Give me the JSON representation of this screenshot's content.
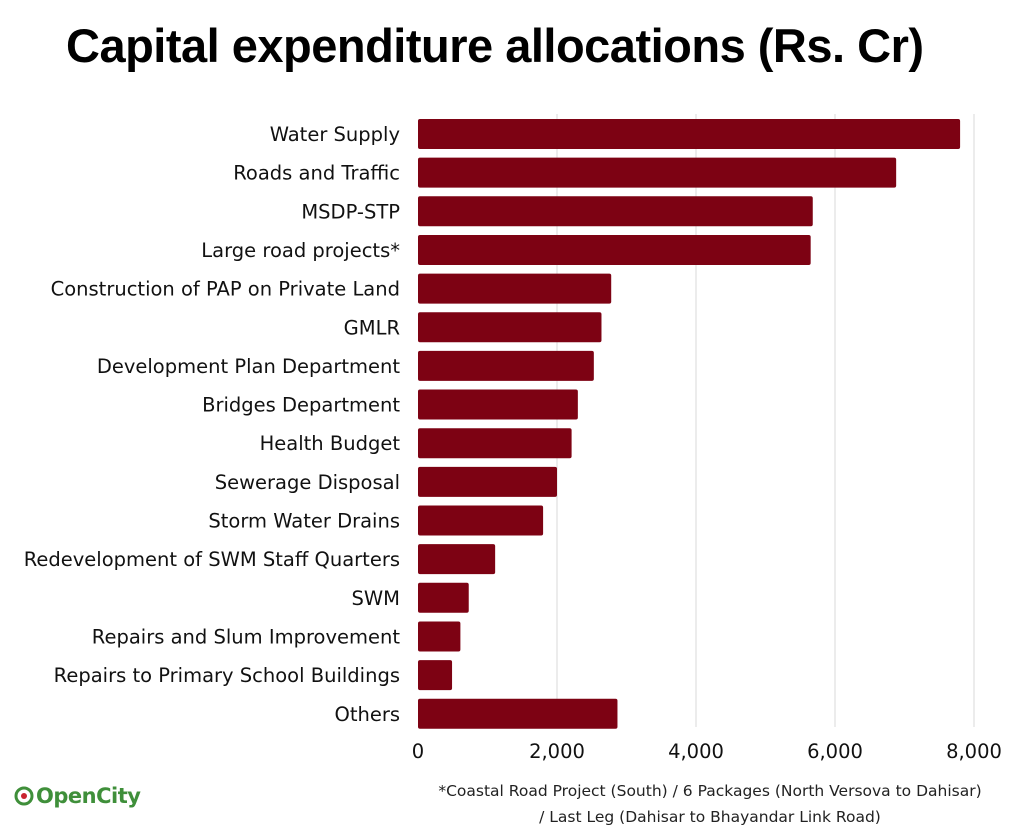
{
  "title": "Capital expenditure allocations (Rs. Cr)",
  "colors": {
    "bar": "#7d0213",
    "grid": "#d9d9d9",
    "logo_green": "#3f8f3a",
    "logo_red": "#c9242f"
  },
  "chart_data": {
    "type": "bar",
    "orientation": "horizontal",
    "title": "Capital expenditure allocations (Rs. Cr)",
    "xlabel": "",
    "ylabel": "",
    "xlim": [
      0,
      8000
    ],
    "x_ticks": [
      0,
      2000,
      4000,
      6000,
      8000
    ],
    "x_tick_labels": [
      "0",
      "2,000",
      "4,000",
      "6,000",
      "8,000"
    ],
    "grid": true,
    "categories": [
      "Water Supply",
      "Roads and Traffic",
      "MSDP-STP",
      "Large road projects*",
      "Construction of PAP on Private Land",
      "GMLR",
      "Development Plan Department",
      "Bridges Department",
      "Health Budget",
      "Sewerage Disposal",
      "Storm Water Drains",
      "Redevelopment of SWM Staff Quarters",
      "SWM",
      "Repairs and Slum Improvement",
      "Repairs to Primary School Buildings",
      "Others"
    ],
    "values": [
      7800,
      6880,
      5680,
      5650,
      2780,
      2640,
      2530,
      2300,
      2210,
      2000,
      1800,
      1110,
      730,
      610,
      490,
      2870
    ]
  },
  "footnote": {
    "line1": "*Coastal Road Project (South) / 6 Packages (North Versova to Dahisar)",
    "line2": "/ Last Leg (Dahisar to Bhayandar Link Road)"
  },
  "logo": {
    "part1": "Open",
    "part2": "City"
  }
}
